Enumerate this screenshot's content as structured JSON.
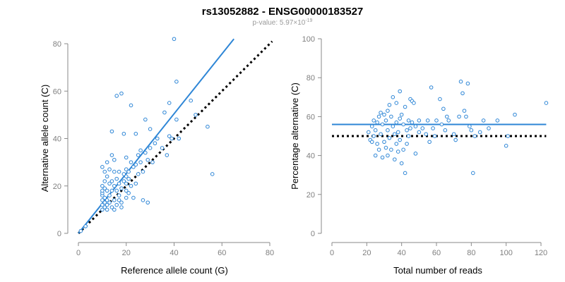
{
  "header": {
    "title": "rs13052882 - ENSG00000183527",
    "pvalue_prefix": "p-value: 5.97×10",
    "pvalue_exponent": "-19"
  },
  "colors": {
    "points": "#2e86d6",
    "fit_line": "#2e86d6",
    "reference_line": "#000000",
    "axis": "#8a8a8a"
  },
  "chart_data": [
    {
      "type": "scatter",
      "xlabel": "Reference allele count (G)",
      "ylabel": "Alternative allele count (C)",
      "xlim": [
        0,
        80
      ],
      "ylim": [
        0,
        80
      ],
      "xticks": [
        0,
        20,
        40,
        60,
        80
      ],
      "yticks": [
        0,
        20,
        40,
        60,
        80
      ],
      "grid": false,
      "lines": [
        {
          "style": "solid",
          "color": "#2e86d6",
          "x": [
            0,
            65
          ],
          "y": [
            0,
            82
          ]
        },
        {
          "style": "dotted",
          "color": "#000000",
          "x": [
            0,
            81
          ],
          "y": [
            0,
            81
          ]
        }
      ],
      "points": [
        [
          1,
          1
        ],
        [
          3,
          3
        ],
        [
          10,
          10
        ],
        [
          10,
          12
        ],
        [
          10,
          14
        ],
        [
          10,
          16
        ],
        [
          10,
          17
        ],
        [
          10,
          18
        ],
        [
          10,
          20
        ],
        [
          10,
          28
        ],
        [
          11,
          11
        ],
        [
          11,
          13
        ],
        [
          11,
          15
        ],
        [
          11,
          19
        ],
        [
          11,
          22
        ],
        [
          11,
          26
        ],
        [
          12,
          10
        ],
        [
          12,
          12
        ],
        [
          12,
          14
        ],
        [
          12,
          18
        ],
        [
          12,
          24
        ],
        [
          12,
          30
        ],
        [
          13,
          13
        ],
        [
          13,
          16
        ],
        [
          13,
          21
        ],
        [
          13,
          27
        ],
        [
          14,
          11
        ],
        [
          14,
          18
        ],
        [
          14,
          22
        ],
        [
          14,
          33
        ],
        [
          14,
          43
        ],
        [
          15,
          10
        ],
        [
          15,
          14
        ],
        [
          15,
          20
        ],
        [
          15,
          26
        ],
        [
          15,
          31
        ],
        [
          16,
          12
        ],
        [
          16,
          18
        ],
        [
          16,
          23
        ],
        [
          16,
          58
        ],
        [
          17,
          16
        ],
        [
          17,
          21
        ],
        [
          17,
          26
        ],
        [
          17,
          14
        ],
        [
          18,
          59
        ],
        [
          18,
          11
        ],
        [
          18,
          19
        ],
        [
          18,
          13
        ],
        [
          19,
          22
        ],
        [
          19,
          25
        ],
        [
          19,
          42
        ],
        [
          20,
          15
        ],
        [
          20,
          18
        ],
        [
          20,
          21
        ],
        [
          20,
          24
        ],
        [
          20,
          27
        ],
        [
          20,
          32
        ],
        [
          21,
          17
        ],
        [
          21,
          23
        ],
        [
          21,
          26
        ],
        [
          22,
          54
        ],
        [
          22,
          20
        ],
        [
          22,
          30
        ],
        [
          23,
          15
        ],
        [
          23,
          28
        ],
        [
          24,
          21
        ],
        [
          24,
          29
        ],
        [
          24,
          42
        ],
        [
          25,
          25
        ],
        [
          25,
          33
        ],
        [
          26,
          30
        ],
        [
          26,
          35
        ],
        [
          27,
          14
        ],
        [
          27,
          26
        ],
        [
          28,
          34
        ],
        [
          28,
          48
        ],
        [
          29,
          13
        ],
        [
          29,
          31
        ],
        [
          30,
          36
        ],
        [
          30,
          44
        ],
        [
          31,
          30
        ],
        [
          32,
          38
        ],
        [
          33,
          40
        ],
        [
          35,
          36
        ],
        [
          36,
          51
        ],
        [
          37,
          33
        ],
        [
          38,
          41
        ],
        [
          38,
          55
        ],
        [
          39,
          40
        ],
        [
          40,
          82
        ],
        [
          41,
          48
        ],
        [
          41,
          64
        ],
        [
          42,
          40
        ],
        [
          47,
          56
        ],
        [
          49,
          50
        ],
        [
          54,
          45
        ],
        [
          56,
          25
        ]
      ]
    },
    {
      "type": "scatter",
      "xlabel": "Total number of reads",
      "ylabel": "Percentage alternative (C)",
      "xlim": [
        0,
        120
      ],
      "ylim": [
        0,
        100
      ],
      "xticks": [
        0,
        20,
        40,
        60,
        80,
        100,
        120
      ],
      "yticks": [
        0,
        20,
        40,
        60,
        80,
        100
      ],
      "grid": false,
      "lines": [
        {
          "style": "solid",
          "color": "#2e86d6",
          "x": [
            0,
            123
          ],
          "y": [
            56,
            56
          ]
        },
        {
          "style": "dotted",
          "color": "#000000",
          "x": [
            0,
            123
          ],
          "y": [
            50,
            50
          ]
        }
      ],
      "points": [
        [
          21,
          52
        ],
        [
          22,
          48
        ],
        [
          23,
          55
        ],
        [
          23,
          47
        ],
        [
          24,
          58
        ],
        [
          24,
          50
        ],
        [
          25,
          53
        ],
        [
          25,
          40
        ],
        [
          26,
          57
        ],
        [
          26,
          46
        ],
        [
          27,
          60
        ],
        [
          27,
          43
        ],
        [
          28,
          62
        ],
        [
          28,
          51
        ],
        [
          29,
          56
        ],
        [
          29,
          39
        ],
        [
          30,
          61
        ],
        [
          30,
          47
        ],
        [
          31,
          58
        ],
        [
          31,
          44
        ],
        [
          32,
          63
        ],
        [
          32,
          53
        ],
        [
          32,
          40
        ],
        [
          33,
          49
        ],
        [
          33,
          66
        ],
        [
          34,
          60
        ],
        [
          34,
          43
        ],
        [
          35,
          55
        ],
        [
          35,
          70
        ],
        [
          36,
          51
        ],
        [
          36,
          38
        ],
        [
          37,
          57
        ],
        [
          37,
          46
        ],
        [
          37,
          67
        ],
        [
          38,
          52
        ],
        [
          38,
          42
        ],
        [
          39,
          73
        ],
        [
          39,
          59
        ],
        [
          39,
          48
        ],
        [
          40,
          36
        ],
        [
          40,
          61
        ],
        [
          41,
          43
        ],
        [
          41,
          56
        ],
        [
          42,
          65
        ],
        [
          42,
          31
        ],
        [
          43,
          53
        ],
        [
          43,
          46
        ],
        [
          44,
          58
        ],
        [
          44,
          50
        ],
        [
          45,
          69
        ],
        [
          45,
          54
        ],
        [
          46,
          68
        ],
        [
          46,
          57
        ],
        [
          47,
          67
        ],
        [
          48,
          55
        ],
        [
          48,
          41
        ],
        [
          50,
          58
        ],
        [
          50,
          52
        ],
        [
          52,
          54
        ],
        [
          54,
          51
        ],
        [
          55,
          58
        ],
        [
          56,
          47
        ],
        [
          57,
          75
        ],
        [
          58,
          54
        ],
        [
          59,
          50
        ],
        [
          60,
          58
        ],
        [
          62,
          69
        ],
        [
          63,
          56
        ],
        [
          64,
          64
        ],
        [
          65,
          53
        ],
        [
          66,
          60
        ],
        [
          67,
          58
        ],
        [
          70,
          51
        ],
        [
          71,
          48
        ],
        [
          73,
          60
        ],
        [
          74,
          78
        ],
        [
          75,
          72
        ],
        [
          76,
          63
        ],
        [
          77,
          60
        ],
        [
          78,
          77
        ],
        [
          79,
          55
        ],
        [
          80,
          53
        ],
        [
          81,
          31
        ],
        [
          82,
          50
        ],
        [
          85,
          52
        ],
        [
          87,
          58
        ],
        [
          90,
          54
        ],
        [
          95,
          58
        ],
        [
          100,
          45
        ],
        [
          101,
          50
        ],
        [
          105,
          61
        ],
        [
          123,
          67
        ]
      ]
    }
  ]
}
